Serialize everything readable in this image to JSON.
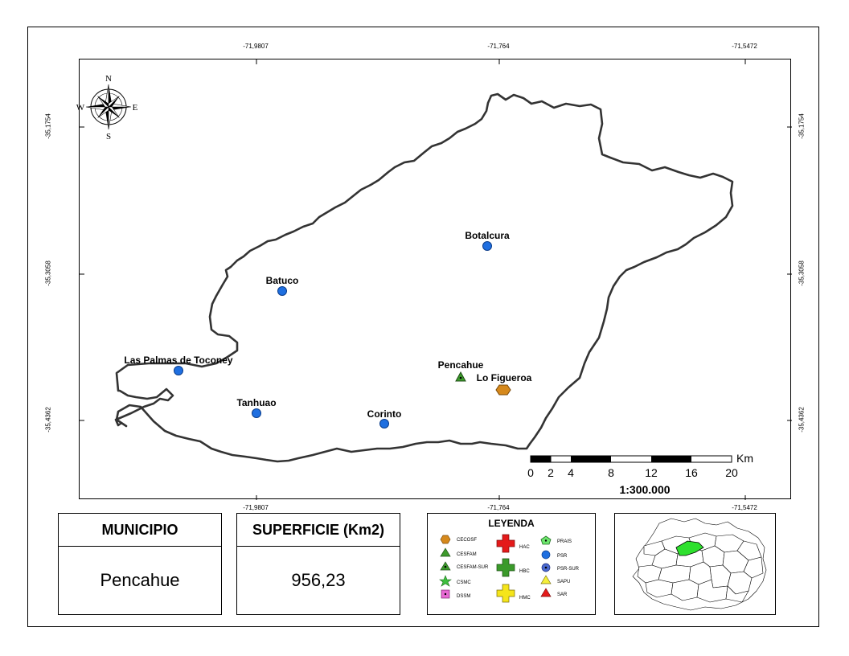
{
  "map": {
    "coords_top": [
      "-71,9807",
      "-71,764",
      "-71,5472"
    ],
    "coords_bottom": [
      "-71,9807",
      "-71,764",
      "-71,5472"
    ],
    "coords_left": [
      "-35,1754",
      "-35,3058",
      "-35,4362"
    ],
    "coords_right": [
      "-35,1754",
      "-35,3058",
      "-35,4362"
    ],
    "compass": {
      "n": "N",
      "s": "S",
      "e": "E",
      "w": "W"
    },
    "places": [
      {
        "name": "Botalcura",
        "type": "PSR"
      },
      {
        "name": "Batuco",
        "type": "PSR"
      },
      {
        "name": "Las Palmas de Toconey",
        "type": "PSR"
      },
      {
        "name": "Tanhuao",
        "type": "PSR"
      },
      {
        "name": "Corinto",
        "type": "PSR"
      },
      {
        "name": "Pencahue",
        "type": "CESFAM"
      },
      {
        "name": "Lo Figueroa",
        "type": "CECOSF"
      }
    ],
    "scalebar": {
      "ticks": [
        "0",
        "2",
        "4",
        "8",
        "12",
        "16",
        "20"
      ],
      "unit": "Km",
      "ratio": "1:300.000"
    }
  },
  "municipio": {
    "heading": "MUNICIPIO",
    "value": "Pencahue"
  },
  "superficie": {
    "heading": "SUPERFICIE (Km2)",
    "value": "956,23"
  },
  "legend": {
    "title": "LEYENDA",
    "items": [
      {
        "label": "CECOSF",
        "symbol": "hexagon-icon",
        "color": "#d6891c"
      },
      {
        "label": "CESFAM",
        "symbol": "triangle-icon",
        "color": "#3d9a2c"
      },
      {
        "label": "CESFAM-SUR",
        "symbol": "triangle-dot-icon",
        "color": "#3d9a2c"
      },
      {
        "label": "CSMC",
        "symbol": "star-icon",
        "color": "#3dbf3d"
      },
      {
        "label": "DSSM",
        "symbol": "square-icon",
        "color": "#e86ad4"
      },
      {
        "label": "HAC",
        "symbol": "cross-icon",
        "color": "#e41a1a"
      },
      {
        "label": "HBC",
        "symbol": "cross-icon",
        "color": "#3a9a2a"
      },
      {
        "label": "HMC",
        "symbol": "cross-icon",
        "color": "#f5e51a"
      },
      {
        "label": "PRAIS",
        "symbol": "pentagon-icon",
        "color": "#6ee66e"
      },
      {
        "label": "PSR",
        "symbol": "circle-icon",
        "color": "#1f6fe0"
      },
      {
        "label": "PSR-SUR",
        "symbol": "circle-dot-icon",
        "color": "#4a6ad0"
      },
      {
        "label": "SAPU",
        "symbol": "triangle-icon",
        "color": "#f5ef3a"
      },
      {
        "label": "SAR",
        "symbol": "triangle-icon",
        "color": "#e41a1a"
      }
    ]
  },
  "locator": {
    "highlight_color": "#2ee02e"
  }
}
